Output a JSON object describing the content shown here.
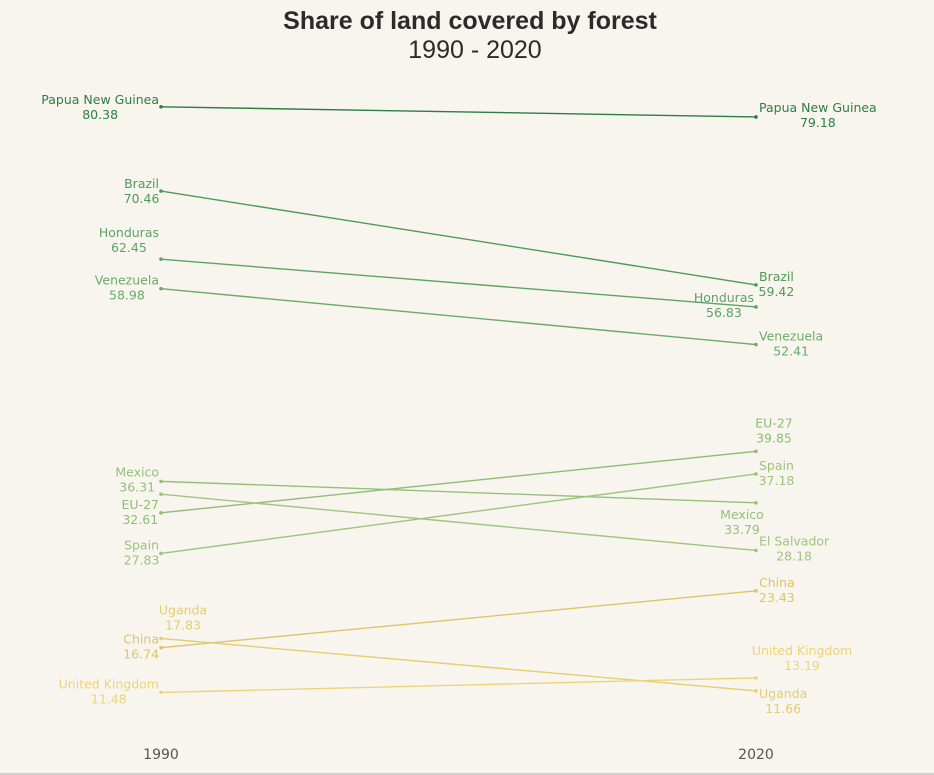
{
  "chart_data": {
    "type": "slope",
    "title": "Share of land covered by forest",
    "subtitle": "1990 - 2020",
    "x": [
      "1990",
      "2020"
    ],
    "ylim": [
      0,
      90
    ],
    "grid": false,
    "legend": "none",
    "series": [
      {
        "name": "Papua New Guinea",
        "values": [
          80.38,
          79.18
        ],
        "labels": [
          "80.38",
          "79.18"
        ],
        "color": "#2e7d46"
      },
      {
        "name": "Brazil",
        "values": [
          70.46,
          59.42
        ],
        "labels": [
          "70.46",
          "59.42"
        ],
        "color": "#4f9a5a"
      },
      {
        "name": "Honduras",
        "values": [
          62.45,
          56.83
        ],
        "labels": [
          "62.45",
          "56.83"
        ],
        "color": "#5ea365"
      },
      {
        "name": "Venezuela",
        "values": [
          58.98,
          52.41
        ],
        "labels": [
          "58.98",
          "52.41"
        ],
        "color": "#6aab6c"
      },
      {
        "name": "Mexico",
        "values": [
          36.31,
          33.79
        ],
        "labels": [
          "36.31",
          "33.79"
        ],
        "color": "#94c07a"
      },
      {
        "name": "EU-27",
        "values": [
          32.61,
          39.85
        ],
        "labels": [
          "32.61",
          "39.85"
        ],
        "color": "#8ebd74"
      },
      {
        "name": "Spain",
        "values": [
          27.83,
          37.18
        ],
        "labels": [
          "27.83",
          "37.18"
        ],
        "color": "#9cc47d"
      },
      {
        "name": "El Salvador",
        "values": [
          34.8,
          28.18
        ],
        "labels": [
          "",
          "28.18"
        ],
        "color": "#a2c47f"
      },
      {
        "name": "China",
        "values": [
          16.74,
          23.43
        ],
        "labels": [
          "16.74",
          "23.43"
        ],
        "color": "#dcc56a"
      },
      {
        "name": "Uganda",
        "values": [
          17.83,
          11.66
        ],
        "labels": [
          "17.83",
          "11.66"
        ],
        "color": "#e6cd6e"
      },
      {
        "name": "United Kingdom",
        "values": [
          11.48,
          13.19
        ],
        "labels": [
          "11.48",
          "13.19"
        ],
        "color": "#efd37a"
      }
    ]
  }
}
